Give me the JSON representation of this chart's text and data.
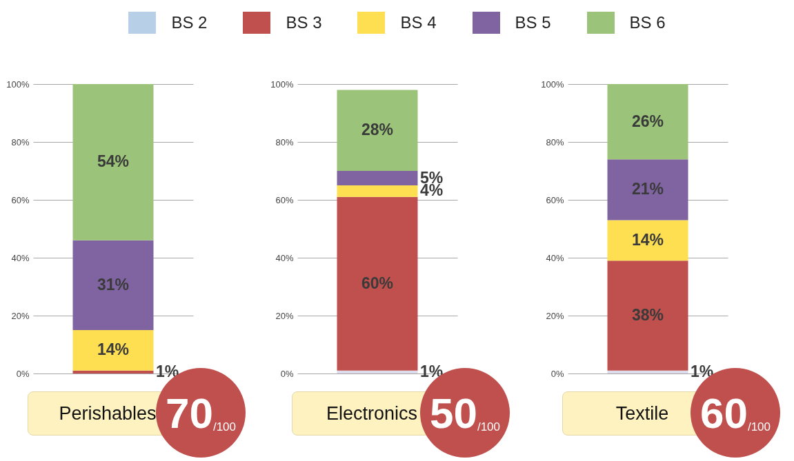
{
  "chart_data": [
    {
      "type": "bar",
      "stacked": true,
      "categories": [
        "Perishables"
      ],
      "legend": "top",
      "grid": "y",
      "ylim": [
        0,
        100
      ],
      "yticks": [
        {
          "value": 0,
          "label": "0%"
        },
        {
          "value": 20,
          "label": "20%"
        },
        {
          "value": 40,
          "label": "40%"
        },
        {
          "value": 60,
          "label": "60%"
        },
        {
          "value": 80,
          "label": "80%"
        },
        {
          "value": 100,
          "label": "100%"
        }
      ],
      "series": [
        {
          "name": "BS 2",
          "color": "#b8cfe8",
          "values": [
            null
          ],
          "value_labels": [
            null
          ]
        },
        {
          "name": "BS 3",
          "color": "#c0504d",
          "values": [
            1
          ],
          "value_labels": [
            "1%"
          ]
        },
        {
          "name": "BS 4",
          "color": "#fedf52",
          "values": [
            14
          ],
          "value_labels": [
            "14%"
          ]
        },
        {
          "name": "BS 5",
          "color": "#8064a2",
          "values": [
            31
          ],
          "value_labels": [
            "31%"
          ]
        },
        {
          "name": "BS 6",
          "color": "#9bc47a",
          "values": [
            54
          ],
          "value_labels": [
            "54%"
          ]
        }
      ],
      "annotations": [
        "70$_{/100}$"
      ]
    },
    {
      "type": "bar",
      "stacked": true,
      "categories": [
        "Electronics"
      ],
      "grid": "y",
      "ylim": [
        0,
        100
      ],
      "yticks": [
        {
          "value": 0,
          "label": "0%"
        },
        {
          "value": 20,
          "label": "20%"
        },
        {
          "value": 40,
          "label": "40%"
        },
        {
          "value": 60,
          "label": "60%"
        },
        {
          "value": 80,
          "label": "80%"
        },
        {
          "value": 100,
          "label": "100%"
        }
      ],
      "series": [
        {
          "color": "#dcdcec",
          "values": [
            1
          ],
          "value_labels": [
            "1%"
          ]
        },
        {
          "color": "#c0504d",
          "values": [
            60
          ],
          "value_labels": [
            "60%"
          ]
        },
        {
          "color": "#fedf52",
          "values": [
            4
          ],
          "value_labels": [
            "4%"
          ]
        },
        {
          "color": "#8064a2",
          "values": [
            5
          ],
          "value_labels": [
            "5%"
          ]
        },
        {
          "color": "#9bc47a",
          "values": [
            28
          ],
          "value_labels": [
            "28%"
          ]
        }
      ],
      "annotations": [
        "50$_{/100}$"
      ]
    },
    {
      "type": "bar",
      "stacked": true,
      "categories": [
        "Textile"
      ],
      "grid": "y",
      "ylim": [
        0,
        100
      ],
      "yticks": [
        {
          "value": 0,
          "label": "0%"
        },
        {
          "value": 20,
          "label": "20%"
        },
        {
          "value": 40,
          "label": "40%"
        },
        {
          "value": 60,
          "label": "60%"
        },
        {
          "value": 80,
          "label": "80%"
        },
        {
          "value": 100,
          "label": "100%"
        }
      ],
      "series": [
        {
          "color": "#dcdcec",
          "values": [
            1
          ],
          "value_labels": [
            "1%"
          ]
        },
        {
          "color": "#c0504d",
          "values": [
            38
          ],
          "value_labels": [
            "38%"
          ]
        },
        {
          "color": "#fedf52",
          "values": [
            14
          ],
          "value_labels": [
            "14%"
          ]
        },
        {
          "color": "#8064a2",
          "values": [
            21
          ],
          "value_labels": [
            "21%"
          ]
        },
        {
          "color": "#9bc47a",
          "values": [
            26
          ],
          "value_labels": [
            "26%"
          ]
        }
      ],
      "annotations": [
        "60$_{/100}$"
      ]
    }
  ]
}
